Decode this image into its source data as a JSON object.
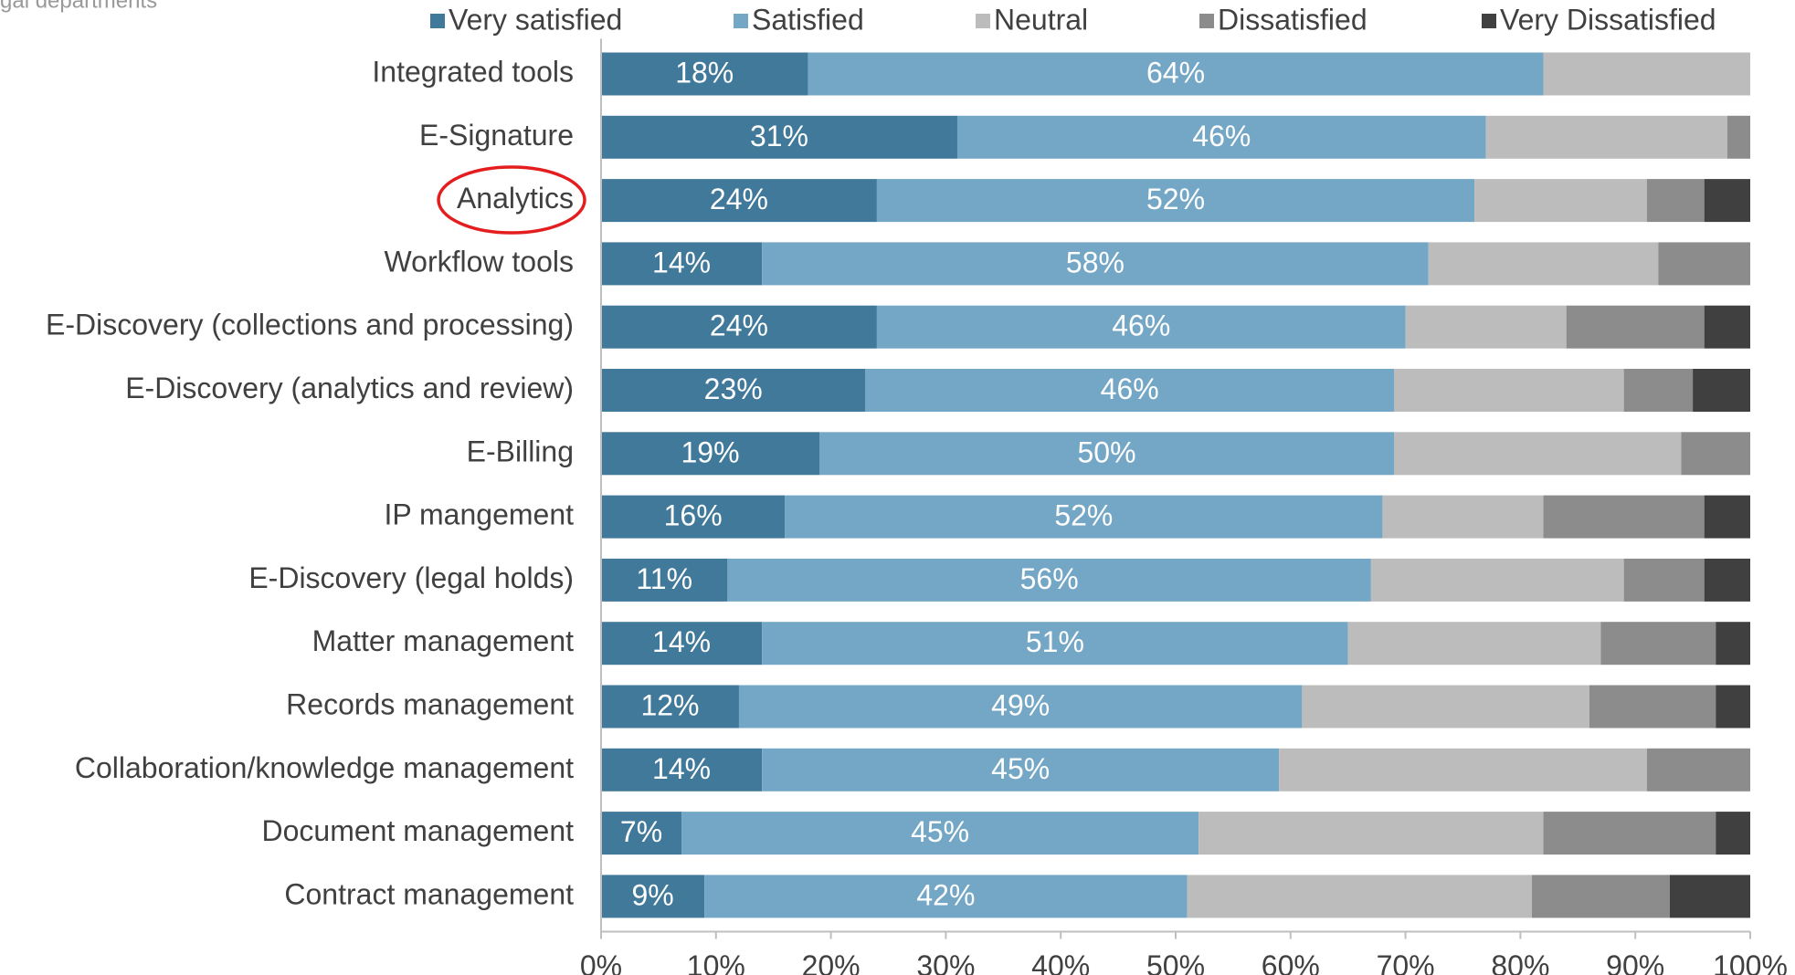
{
  "chart_data": {
    "type": "stacked_bar_horizontal",
    "subtitle": "gal departments",
    "categories": [
      "Integrated tools",
      "E-Signature",
      "Analytics",
      "Workflow tools",
      "E-Discovery (collections and processing)",
      "E-Discovery (analytics and review)",
      "E-Billing",
      "IP mangement",
      "E-Discovery (legal holds)",
      "Matter management",
      "Records management",
      "Collaboration/knowledge management",
      "Document management",
      "Contract management"
    ],
    "series": [
      {
        "name": "Very satisfied",
        "color": "#41799a",
        "values": [
          18,
          31,
          24,
          14,
          24,
          23,
          19,
          16,
          11,
          14,
          12,
          14,
          7,
          9
        ],
        "value_labels": [
          "18%",
          "31%",
          "24%",
          "14%",
          "24%",
          "23%",
          "19%",
          "16%",
          "11%",
          "14%",
          "12%",
          "14%",
          "7%",
          "9%"
        ]
      },
      {
        "name": "Satisfied",
        "color": "#74a7c5",
        "values": [
          64,
          46,
          52,
          58,
          46,
          46,
          50,
          52,
          56,
          51,
          49,
          45,
          45,
          42
        ],
        "value_labels": [
          "64%",
          "46%",
          "52%",
          "58%",
          "46%",
          "46%",
          "50%",
          "52%",
          "56%",
          "51%",
          "49%",
          "45%",
          "45%",
          "42%"
        ]
      },
      {
        "name": "Neutral",
        "color": "#bcbcbc",
        "values": [
          18,
          21,
          15,
          20,
          14,
          20,
          25,
          14,
          22,
          22,
          25,
          32,
          30,
          30
        ]
      },
      {
        "name": "Dissatisfied",
        "color": "#8c8c8c",
        "values": [
          0,
          2,
          5,
          8,
          12,
          6,
          6,
          14,
          7,
          10,
          11,
          9,
          15,
          12
        ]
      },
      {
        "name": "Very Dissatisfied",
        "color": "#404040",
        "values": [
          0,
          0,
          4,
          0,
          4,
          5,
          0,
          4,
          4,
          3,
          3,
          0,
          3,
          7
        ]
      }
    ],
    "xlim": [
      0,
      100
    ],
    "xticks": [
      {
        "value": 0,
        "label": "0%"
      },
      {
        "value": 10,
        "label": "10%"
      },
      {
        "value": 20,
        "label": "20%"
      },
      {
        "value": 30,
        "label": "30%"
      },
      {
        "value": 40,
        "label": "40%"
      },
      {
        "value": 50,
        "label": "50%"
      },
      {
        "value": 60,
        "label": "60%"
      },
      {
        "value": 70,
        "label": "70%"
      },
      {
        "value": 80,
        "label": "80%"
      },
      {
        "value": 90,
        "label": "90%"
      },
      {
        "value": 100,
        "label": "100%"
      }
    ],
    "legend": "top"
  }
}
